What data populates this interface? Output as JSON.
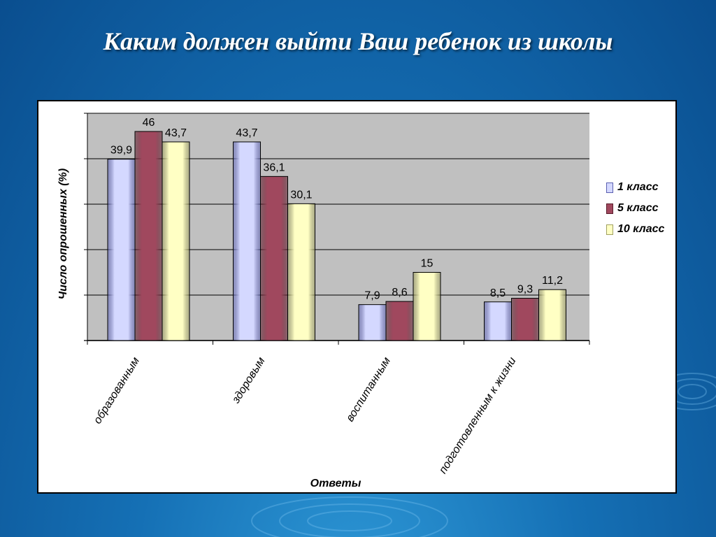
{
  "slide": {
    "title": "Каким должен выйти  Ваш ребенок из школы"
  },
  "colors": {
    "series": [
      "#d4d8ff",
      "#a0485e",
      "#ffffc4"
    ],
    "series_edge": [
      "#5a5fb0",
      "#5a1d2b",
      "#a0a060"
    ],
    "plot_bg": "#c0c0c0"
  },
  "chart_data": {
    "type": "bar",
    "title": "",
    "xlabel": "Ответы",
    "ylabel": "Число опрошенных (%)",
    "categories": [
      "образованным",
      "здоровым",
      "воспитанным",
      "подготовленным к жизни"
    ],
    "series": [
      {
        "name": "1 класс",
        "values": [
          39.9,
          43.7,
          7.9,
          8.5
        ],
        "labels": [
          "39,9",
          "43,7",
          "7,9",
          "8,5"
        ]
      },
      {
        "name": "5 класс",
        "values": [
          46,
          36.1,
          8.6,
          9.3
        ],
        "labels": [
          "46",
          "36,1",
          "8,6",
          "9,3"
        ]
      },
      {
        "name": "10 класс",
        "values": [
          43.7,
          30.1,
          15,
          11.2
        ],
        "labels": [
          "43,7",
          "30,1",
          "15",
          "11,2"
        ]
      }
    ],
    "ylim": [
      0,
      50
    ],
    "grid": true,
    "legend": "right"
  }
}
